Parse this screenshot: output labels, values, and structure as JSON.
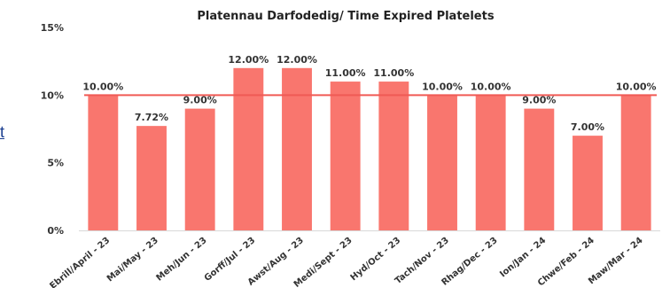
{
  "edge_fragment": "t",
  "chart_data": {
    "type": "bar",
    "title": "Platennau Darfodedig/ Time Expired Platelets",
    "xlabel": "",
    "ylabel": "",
    "ylim": [
      0,
      15
    ],
    "yticks": [
      0,
      5,
      10,
      15
    ],
    "ytick_labels": [
      "0%",
      "5%",
      "10%",
      "15%"
    ],
    "categories": [
      "Ebrill/April - 23",
      "Mai/May - 23",
      "Meh/Jun - 23",
      "Gorff/Jul - 23",
      "Awst/Aug - 23",
      "Medi/Sept - 23",
      "Hyd/Oct - 23",
      "Tach/Nov - 23",
      "Rhag/Dec - 23",
      "Ion/Jan - 24",
      "Chwe/Feb - 24",
      "Maw/Mar - 24"
    ],
    "values": [
      10,
      7.72,
      9,
      12,
      12,
      11,
      11,
      10,
      10,
      9,
      7,
      10
    ],
    "data_labels": [
      "10.00%",
      "7.72%",
      "9.00%",
      "12.00%",
      "12.00%",
      "11.00%",
      "11.00%",
      "10.00%",
      "10.00%",
      "9.00%",
      "7.00%",
      "10.00%"
    ],
    "target_line": 10,
    "grid": false,
    "legend": "none",
    "bar_color": "#f9766e",
    "line_color": "#f05a55"
  }
}
